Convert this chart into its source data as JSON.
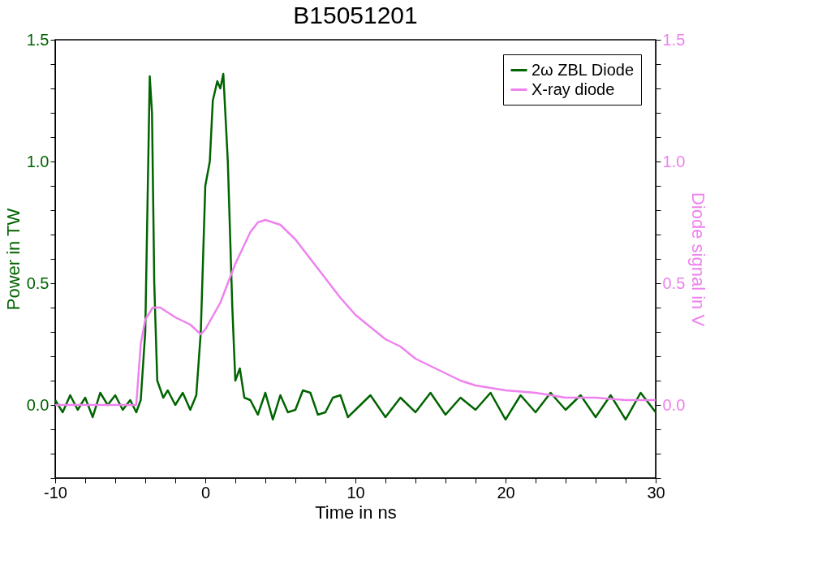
{
  "chart_data": {
    "type": "line",
    "title": "B15051201",
    "xlabel": "Time in ns",
    "ylabel": "Power in TW",
    "y2label": "Diode signal in V",
    "xlim": [
      -10,
      30
    ],
    "xticks": [
      -10,
      {
        "value": -8,
        "label": null
      },
      {
        "value": -6,
        "label": null
      },
      {
        "value": -4,
        "label": null
      },
      {
        "value": -2,
        "label": null
      },
      0,
      {
        "value": 2,
        "label": null
      },
      {
        "value": 4,
        "label": null
      },
      {
        "value": 6,
        "label": null
      },
      {
        "value": 8,
        "label": null
      },
      10,
      {
        "value": 12,
        "label": null
      },
      {
        "value": 14,
        "label": null
      },
      {
        "value": 16,
        "label": null
      },
      {
        "value": 18,
        "label": null
      },
      20,
      {
        "value": 22,
        "label": null
      },
      {
        "value": 24,
        "label": null
      },
      {
        "value": 26,
        "label": null
      },
      {
        "value": 28,
        "label": null
      },
      30
    ],
    "ylim": [
      -0.3,
      1.5
    ],
    "yticks": [
      {
        "value": -0.3,
        "label": null
      },
      {
        "value": -0.2,
        "label": null
      },
      {
        "value": -0.1,
        "label": null
      },
      {
        "value": 0,
        "label": "0.0"
      },
      {
        "value": 0.1,
        "label": null
      },
      {
        "value": 0.2,
        "label": null
      },
      {
        "value": 0.3,
        "label": null
      },
      {
        "value": 0.4,
        "label": null
      },
      {
        "value": 0.5,
        "label": "0.5"
      },
      {
        "value": 0.6,
        "label": null
      },
      {
        "value": 0.7,
        "label": null
      },
      {
        "value": 0.8,
        "label": null
      },
      {
        "value": 0.9,
        "label": null
      },
      {
        "value": 1,
        "label": "1.0"
      },
      {
        "value": 1.1,
        "label": null
      },
      {
        "value": 1.2,
        "label": null
      },
      {
        "value": 1.3,
        "label": null
      },
      {
        "value": 1.4,
        "label": null
      },
      {
        "value": 1.5,
        "label": "1.5"
      }
    ],
    "y2lim": [
      -0.3,
      1.5
    ],
    "y2ticks": [
      {
        "value": -0.3,
        "label": null
      },
      {
        "value": -0.2,
        "label": null
      },
      {
        "value": -0.1,
        "label": null
      },
      {
        "value": 0,
        "label": "0.0"
      },
      {
        "value": 0.1,
        "label": null
      },
      {
        "value": 0.2,
        "label": null
      },
      {
        "value": 0.3,
        "label": null
      },
      {
        "value": 0.4,
        "label": null
      },
      {
        "value": 0.5,
        "label": "0.5"
      },
      {
        "value": 0.6,
        "label": null
      },
      {
        "value": 0.7,
        "label": null
      },
      {
        "value": 0.8,
        "label": null
      },
      {
        "value": 0.9,
        "label": null
      },
      {
        "value": 1,
        "label": "1.0"
      },
      {
        "value": 1.1,
        "label": null
      },
      {
        "value": 1.2,
        "label": null
      },
      {
        "value": 1.3,
        "label": null
      },
      {
        "value": 1.4,
        "label": null
      },
      {
        "value": 1.5,
        "label": "1.5"
      }
    ],
    "grid": false,
    "legend": "top right",
    "series": [
      {
        "name": "2ω ZBL Diode",
        "color": "#006400",
        "x": [
          -10,
          -9.5,
          -9,
          -8.5,
          -8,
          -7.5,
          -7,
          -6.5,
          -6,
          -5.5,
          -5,
          -4.6,
          -4.3,
          -4.0,
          -3.8,
          -3.7,
          -3.55,
          -3.4,
          -3.2,
          -2.8,
          -2.5,
          -2,
          -1.5,
          -1,
          -0.6,
          -0.3,
          0,
          0.3,
          0.5,
          0.8,
          1,
          1.2,
          1.5,
          1.8,
          2,
          2.3,
          2.6,
          3,
          3.5,
          4,
          4.5,
          5,
          5.5,
          6,
          6.5,
          7,
          7.5,
          8,
          8.5,
          9,
          9.5,
          10,
          11,
          12,
          13,
          14,
          15,
          16,
          17,
          18,
          19,
          20,
          21,
          22,
          23,
          24,
          25,
          26,
          27,
          28,
          29,
          30
        ],
        "values": [
          0.02,
          -0.03,
          0.04,
          -0.02,
          0.03,
          -0.05,
          0.05,
          0.0,
          0.04,
          -0.02,
          0.02,
          -0.03,
          0.02,
          0.3,
          1.0,
          1.35,
          1.2,
          0.5,
          0.1,
          0.03,
          0.06,
          0.0,
          0.05,
          -0.02,
          0.04,
          0.3,
          0.9,
          1.0,
          1.25,
          1.33,
          1.3,
          1.36,
          1.0,
          0.4,
          0.1,
          0.15,
          0.03,
          0.02,
          -0.04,
          0.05,
          -0.06,
          0.04,
          -0.03,
          -0.02,
          0.06,
          0.05,
          -0.04,
          -0.03,
          0.03,
          0.04,
          -0.05,
          -0.02,
          0.04,
          -0.05,
          0.03,
          -0.03,
          0.05,
          -0.04,
          0.03,
          -0.02,
          0.05,
          -0.06,
          0.04,
          -0.03,
          0.05,
          -0.02,
          0.04,
          -0.05,
          0.04,
          -0.06,
          0.05,
          -0.03
        ]
      },
      {
        "name": "X-ray diode",
        "color": "#ee82ee",
        "axis": "y2",
        "x": [
          -10,
          -6,
          -4.6,
          -4.3,
          -4,
          -3.5,
          -3,
          -2,
          -1,
          -0.3,
          0,
          1,
          2,
          3,
          3.5,
          4,
          5,
          6,
          7,
          8,
          9,
          10,
          11,
          12,
          13,
          14,
          15,
          16,
          17,
          18,
          19,
          20,
          22,
          24,
          26,
          28,
          30
        ],
        "values": [
          0.0,
          0.0,
          0.0,
          0.25,
          0.35,
          0.4,
          0.4,
          0.36,
          0.33,
          0.29,
          0.31,
          0.42,
          0.58,
          0.71,
          0.75,
          0.76,
          0.74,
          0.68,
          0.6,
          0.52,
          0.44,
          0.37,
          0.32,
          0.27,
          0.24,
          0.19,
          0.16,
          0.13,
          0.1,
          0.08,
          0.07,
          0.06,
          0.05,
          0.03,
          0.03,
          0.02,
          0.02
        ]
      }
    ]
  }
}
